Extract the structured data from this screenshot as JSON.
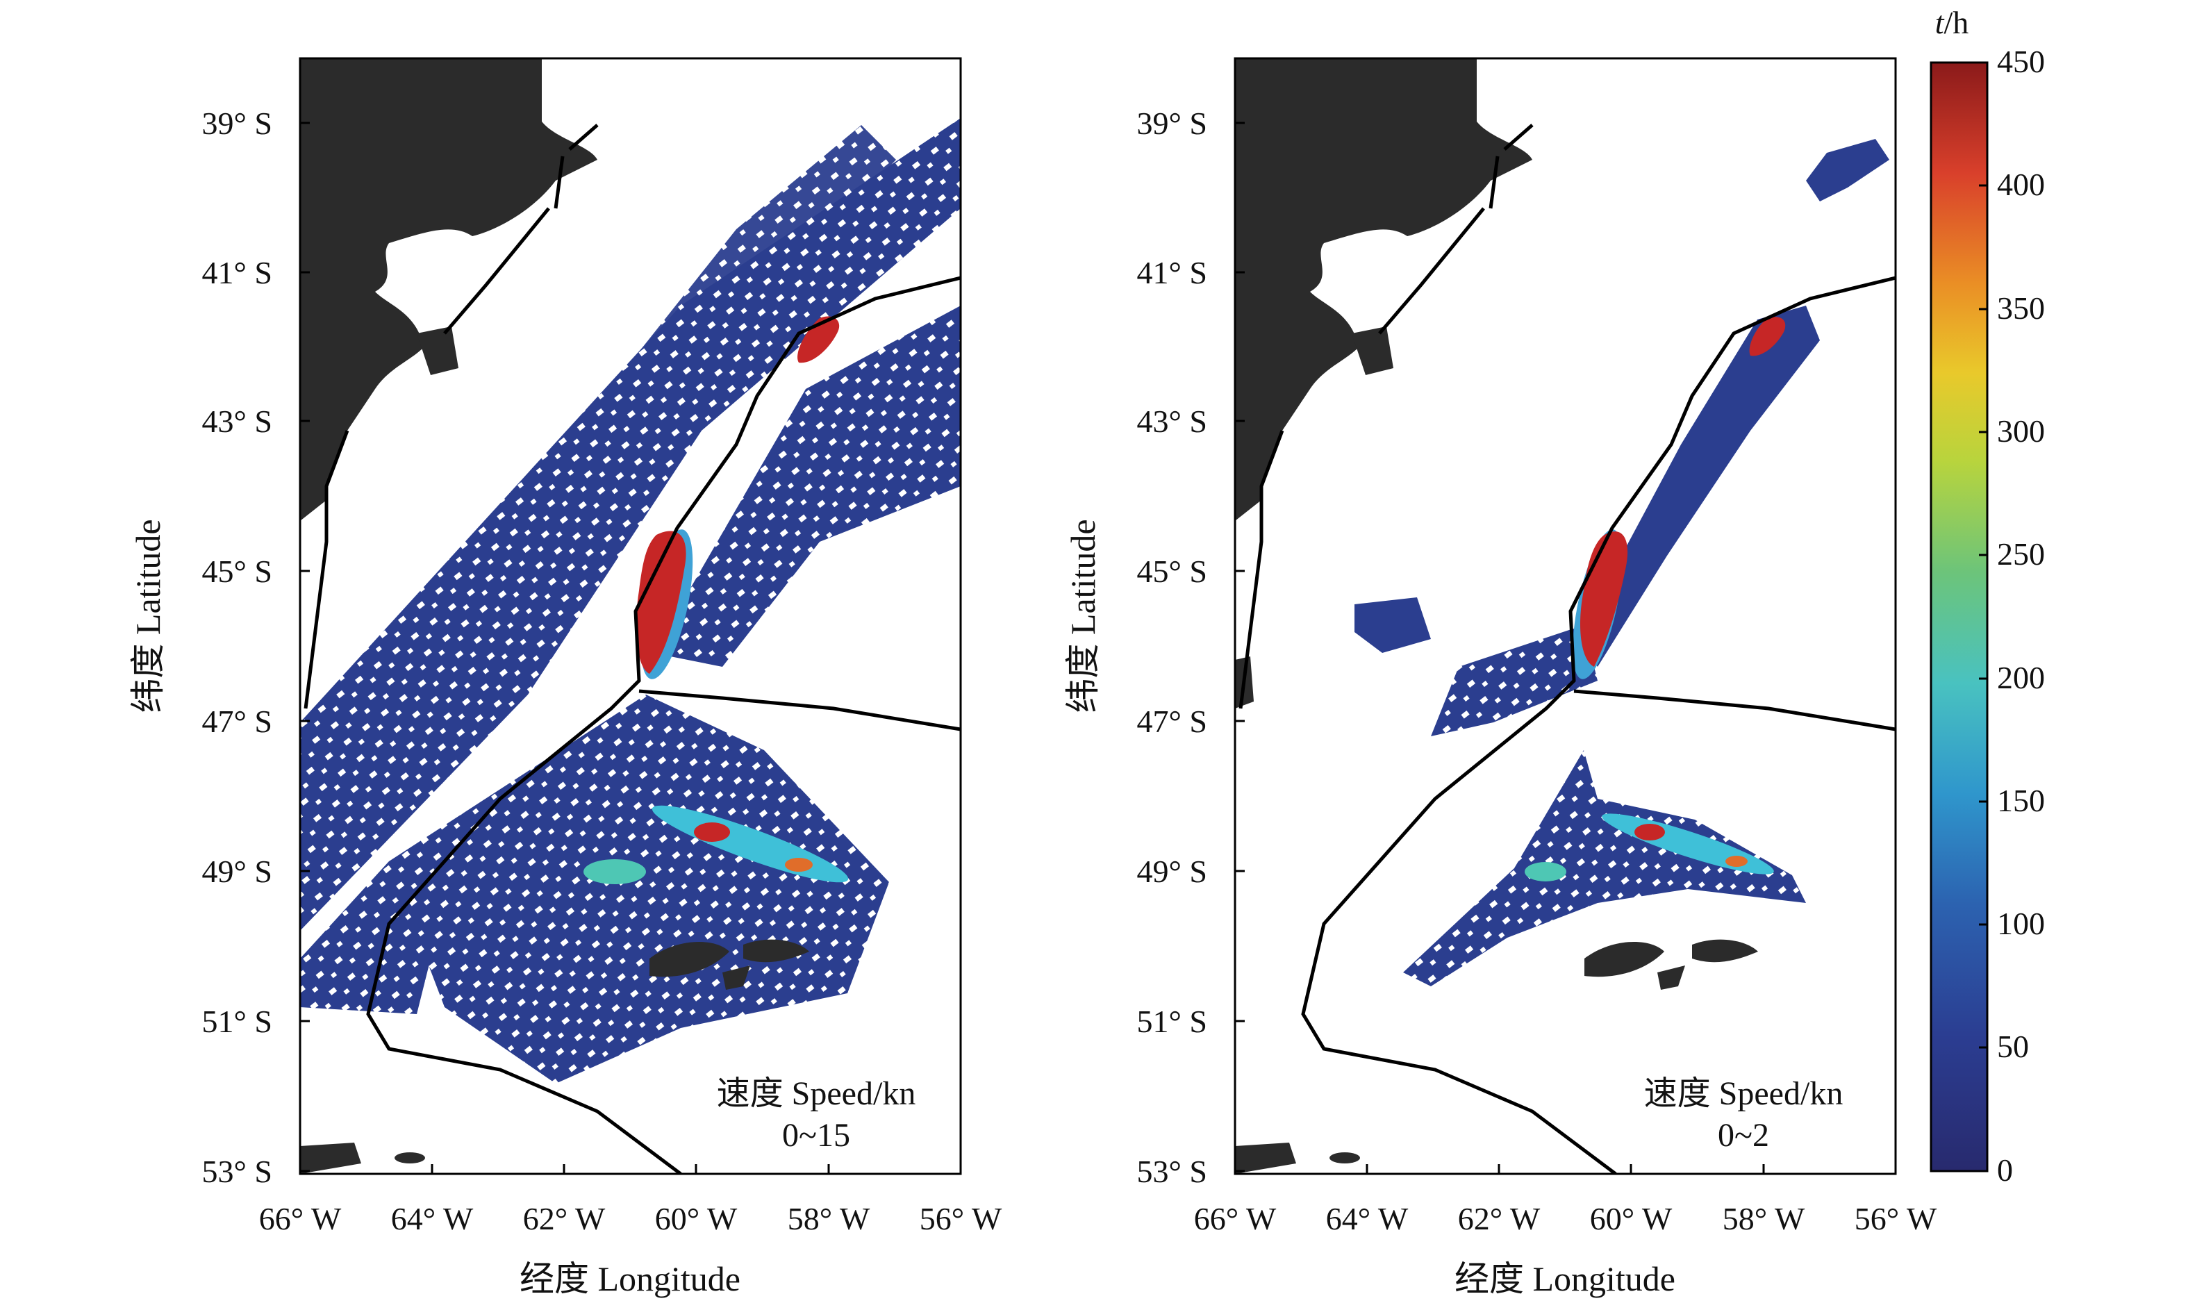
{
  "figure": {
    "panels": [
      {
        "id": "left",
        "note_line1": "速度 Speed/kn",
        "note_line2": "0~15",
        "ylabel": "纬度 Latitude",
        "xlabel": "经度 Longitude"
      },
      {
        "id": "right",
        "note_line1": "速度 Speed/kn",
        "note_line2": "0~2",
        "ylabel": "纬度 Latitude",
        "xlabel": "经度 Longitude"
      }
    ],
    "lat_ticks": [
      "39° S",
      "41° S",
      "43° S",
      "45° S",
      "47° S",
      "49° S",
      "51° S",
      "53° S"
    ],
    "lon_ticks": [
      "66° W",
      "64° W",
      "62° W",
      "60° W",
      "58° W",
      "56° W"
    ],
    "colorbar": {
      "unit_italic": "t",
      "unit_rest": "/h",
      "ticks": [
        "450",
        "400",
        "350",
        "300",
        "250",
        "200",
        "150",
        "100",
        "50",
        "0"
      ],
      "range": [
        0,
        450
      ]
    },
    "colors": {
      "land": "#2b2b2b",
      "low_density": "#2b3e8f",
      "mid_density": "#3fc0d8",
      "high_density": "#c62626",
      "boundary_lines": "#000000"
    }
  }
}
